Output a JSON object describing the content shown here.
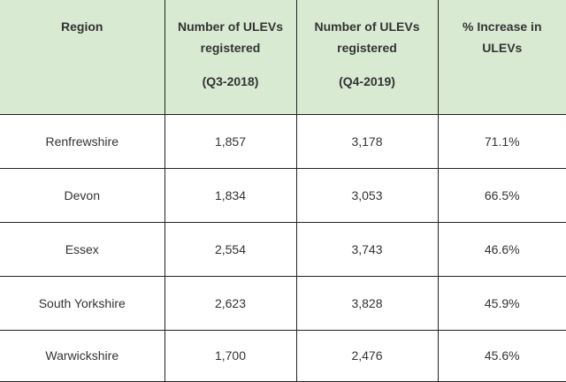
{
  "table": {
    "headers": [
      {
        "lines": [
          "Region"
        ],
        "period": ""
      },
      {
        "lines": [
          "Number of ULEVs",
          "registered"
        ],
        "period": "(Q3-2018)"
      },
      {
        "lines": [
          "Number of ULEVs",
          "registered"
        ],
        "period": "(Q4-2019)"
      },
      {
        "lines": [
          "% Increase in",
          "ULEVs"
        ],
        "period": ""
      }
    ],
    "rows": [
      {
        "region": "Renfrewshire",
        "q3_2018": "1,857",
        "q4_2019": "3,178",
        "increase": "71.1%"
      },
      {
        "region": "Devon",
        "q3_2018": "1,834",
        "q4_2019": "3,053",
        "increase": "66.5%"
      },
      {
        "region": "Essex",
        "q3_2018": "2,554",
        "q4_2019": "3,743",
        "increase": "46.6%"
      },
      {
        "region": "South Yorkshire",
        "q3_2018": "2,623",
        "q4_2019": "3,828",
        "increase": "45.9%"
      },
      {
        "region": "Warwickshire",
        "q3_2018": "1,700",
        "q4_2019": "2,476",
        "increase": "45.6%"
      }
    ]
  },
  "colors": {
    "header_background": "#d9ead3",
    "border": "#222222",
    "text": "#333333"
  }
}
